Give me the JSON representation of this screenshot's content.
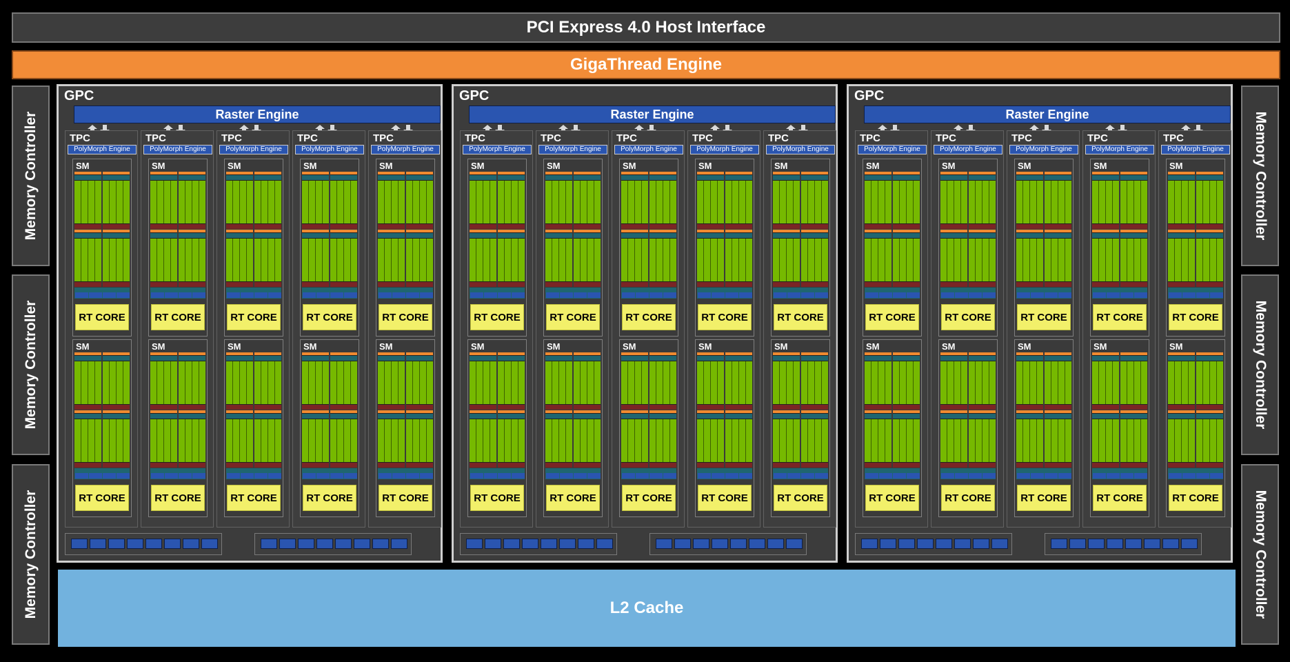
{
  "header": {
    "pcie": "PCI Express 4.0 Host Interface",
    "gigathread": "GigaThread Engine"
  },
  "memory_controllers": {
    "left": [
      "Memory Controller",
      "Memory Controller",
      "Memory Controller"
    ],
    "right": [
      "Memory Controller",
      "Memory Controller",
      "Memory Controller"
    ]
  },
  "gpcs": [
    {
      "label": "GPC",
      "raster": "Raster Engine",
      "tpcs": [
        {
          "label": "TPC",
          "polymorph": "PolyMorph Engine",
          "sms": [
            {
              "label": "SM",
              "rt": "RT CORE"
            },
            {
              "label": "SM",
              "rt": "RT CORE"
            }
          ]
        },
        {
          "label": "TPC",
          "polymorph": "PolyMorph Engine",
          "sms": [
            {
              "label": "SM",
              "rt": "RT CORE"
            },
            {
              "label": "SM",
              "rt": "RT CORE"
            }
          ]
        },
        {
          "label": "TPC",
          "polymorph": "PolyMorph Engine",
          "sms": [
            {
              "label": "SM",
              "rt": "RT CORE"
            },
            {
              "label": "SM",
              "rt": "RT CORE"
            }
          ]
        },
        {
          "label": "TPC",
          "polymorph": "PolyMorph Engine",
          "sms": [
            {
              "label": "SM",
              "rt": "RT CORE"
            },
            {
              "label": "SM",
              "rt": "RT CORE"
            }
          ]
        },
        {
          "label": "TPC",
          "polymorph": "PolyMorph Engine",
          "sms": [
            {
              "label": "SM",
              "rt": "RT CORE"
            },
            {
              "label": "SM",
              "rt": "RT CORE"
            }
          ]
        }
      ]
    },
    {
      "label": "GPC",
      "raster": "Raster Engine",
      "tpcs": [
        {
          "label": "TPC",
          "polymorph": "PolyMorph Engine",
          "sms": [
            {
              "label": "SM",
              "rt": "RT CORE"
            },
            {
              "label": "SM",
              "rt": "RT CORE"
            }
          ]
        },
        {
          "label": "TPC",
          "polymorph": "PolyMorph Engine",
          "sms": [
            {
              "label": "SM",
              "rt": "RT CORE"
            },
            {
              "label": "SM",
              "rt": "RT CORE"
            }
          ]
        },
        {
          "label": "TPC",
          "polymorph": "PolyMorph Engine",
          "sms": [
            {
              "label": "SM",
              "rt": "RT CORE"
            },
            {
              "label": "SM",
              "rt": "RT CORE"
            }
          ]
        },
        {
          "label": "TPC",
          "polymorph": "PolyMorph Engine",
          "sms": [
            {
              "label": "SM",
              "rt": "RT CORE"
            },
            {
              "label": "SM",
              "rt": "RT CORE"
            }
          ]
        },
        {
          "label": "TPC",
          "polymorph": "PolyMorph Engine",
          "sms": [
            {
              "label": "SM",
              "rt": "RT CORE"
            },
            {
              "label": "SM",
              "rt": "RT CORE"
            }
          ]
        }
      ]
    },
    {
      "label": "GPC",
      "raster": "Raster Engine",
      "tpcs": [
        {
          "label": "TPC",
          "polymorph": "PolyMorph Engine",
          "sms": [
            {
              "label": "SM",
              "rt": "RT CORE"
            },
            {
              "label": "SM",
              "rt": "RT CORE"
            }
          ]
        },
        {
          "label": "TPC",
          "polymorph": "PolyMorph Engine",
          "sms": [
            {
              "label": "SM",
              "rt": "RT CORE"
            },
            {
              "label": "SM",
              "rt": "RT CORE"
            }
          ]
        },
        {
          "label": "TPC",
          "polymorph": "PolyMorph Engine",
          "sms": [
            {
              "label": "SM",
              "rt": "RT CORE"
            },
            {
              "label": "SM",
              "rt": "RT CORE"
            }
          ]
        },
        {
          "label": "TPC",
          "polymorph": "PolyMorph Engine",
          "sms": [
            {
              "label": "SM",
              "rt": "RT CORE"
            },
            {
              "label": "SM",
              "rt": "RT CORE"
            }
          ]
        },
        {
          "label": "TPC",
          "polymorph": "PolyMorph Engine",
          "sms": [
            {
              "label": "SM",
              "rt": "RT CORE"
            },
            {
              "label": "SM",
              "rt": "RT CORE"
            }
          ]
        }
      ]
    }
  ],
  "l2_cache": "L2 Cache",
  "colors": {
    "pcie_bg": "#3d3d3d",
    "gigathread": "#f28c37",
    "raster": "#2a55b0",
    "cuda_cores": "#76b900",
    "rt_core": "#f2f06a",
    "l2_cache": "#72b2de",
    "gpc_border": "#cfcfcf"
  }
}
